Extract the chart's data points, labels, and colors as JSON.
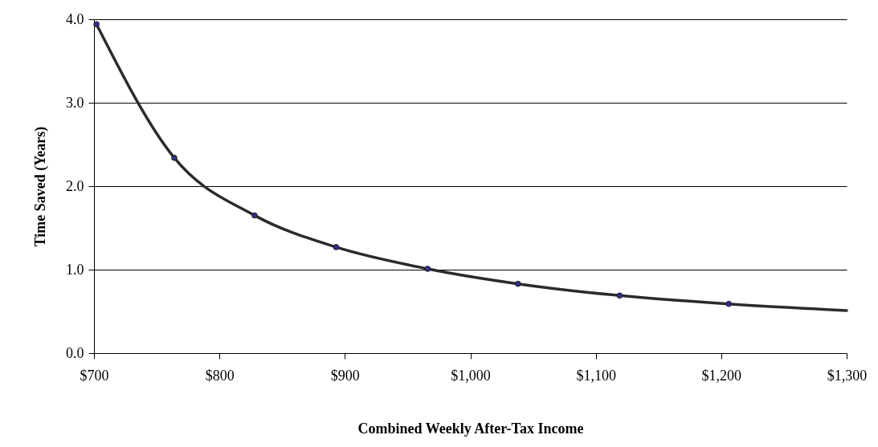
{
  "chart_data": {
    "type": "scatter",
    "xlabel": "Combined Weekly After-Tax Income",
    "ylabel": "Time Saved (Years)",
    "xlim": [
      700,
      1300
    ],
    "ylim": [
      0,
      4
    ],
    "xticks": [
      {
        "value": 700,
        "label": "$700"
      },
      {
        "value": 800,
        "label": "$800"
      },
      {
        "value": 900,
        "label": "$900"
      },
      {
        "value": 1000,
        "label": "$1,000"
      },
      {
        "value": 1100,
        "label": "$1,100"
      },
      {
        "value": 1200,
        "label": "$1,200"
      },
      {
        "value": 1300,
        "label": "$1,300"
      }
    ],
    "yticks": [
      {
        "value": 0,
        "label": "0.0"
      },
      {
        "value": 1,
        "label": "1.0"
      },
      {
        "value": 2,
        "label": "2.0"
      },
      {
        "value": 3,
        "label": "3.0"
      },
      {
        "value": 4,
        "label": "4.0"
      }
    ],
    "grid": "y",
    "series": [
      {
        "type": "line",
        "color": "#2b2b2b",
        "marker": "none",
        "x": [
          702,
          764,
          828,
          893,
          966,
          1038,
          1119,
          1206,
          1300
        ],
        "values": [
          3.94,
          2.34,
          1.65,
          1.27,
          1.01,
          0.83,
          0.69,
          0.59,
          0.51
        ]
      },
      {
        "color": "#2e2e8a",
        "marker": "circle",
        "x": [
          702,
          764,
          828,
          893,
          966,
          1038,
          1119,
          1206
        ],
        "values": [
          3.94,
          2.34,
          1.65,
          1.27,
          1.01,
          0.83,
          0.69,
          0.59
        ]
      }
    ]
  }
}
